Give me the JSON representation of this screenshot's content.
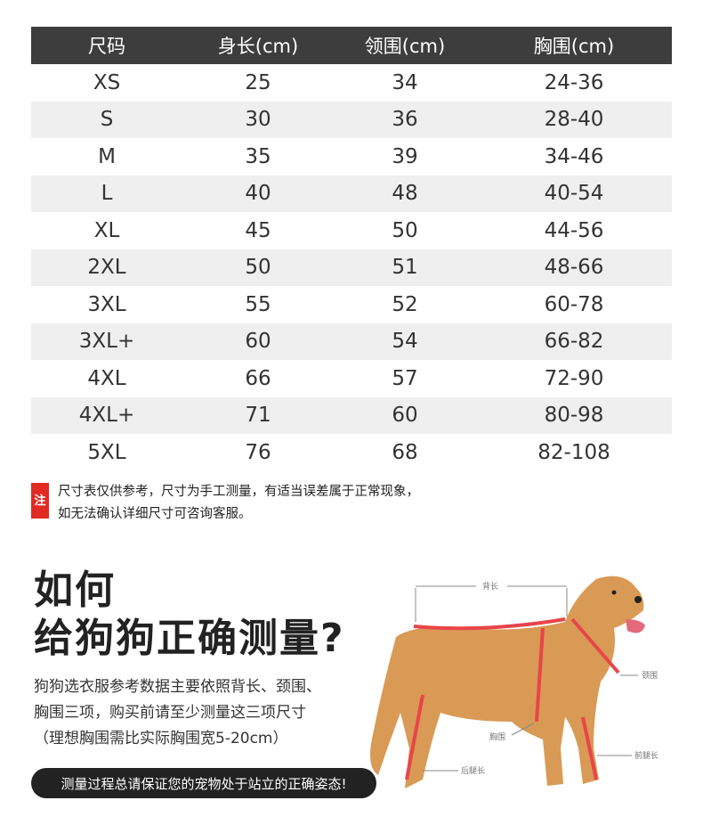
{
  "table": {
    "headers": [
      "尺码",
      "身长(cm)",
      "领围(cm)",
      "胸围(cm)"
    ],
    "rows": [
      [
        "XS",
        "25",
        "34",
        "24-36"
      ],
      [
        "S",
        "30",
        "36",
        "28-40"
      ],
      [
        "M",
        "35",
        "39",
        "34-46"
      ],
      [
        "L",
        "40",
        "48",
        "40-54"
      ],
      [
        "XL",
        "45",
        "50",
        "44-56"
      ],
      [
        "2XL",
        "50",
        "51",
        "48-66"
      ],
      [
        "3XL",
        "55",
        "52",
        "60-78"
      ],
      [
        "3XL+",
        "60",
        "54",
        "66-82"
      ],
      [
        "4XL",
        "66",
        "57",
        "72-90"
      ],
      [
        "4XL+",
        "71",
        "60",
        "80-98"
      ],
      [
        "5XL",
        "76",
        "68",
        "82-108"
      ]
    ]
  },
  "note": {
    "tag": "注",
    "line1": "尺寸表仅供参考，尺寸为手工测量，有适当误差属于正常现象，",
    "line2": "如无法确认详细尺寸可咨询客服。"
  },
  "guide": {
    "title_line1": "如何",
    "title_line2": "给狗狗正确测量?",
    "desc_line1": "狗狗选衣服参考数据主要依照背长、颈围、",
    "desc_line2": "胸围三项，购买前请至少测量这三项尺寸",
    "desc_line3": "（理想胸围需比实际胸围宽5-20cm）",
    "banner": "测量过程总请保证您的宠物处于站立的正确姿态!"
  },
  "diagram": {
    "back_length": "背长",
    "neck": "颈围",
    "chest": "胸围",
    "hind_leg": "后腿长",
    "front_leg": "前腿长"
  },
  "colors": {
    "header_bg": "#3d3d3d",
    "accent": "#e02a22",
    "tape": "#e8454a"
  }
}
